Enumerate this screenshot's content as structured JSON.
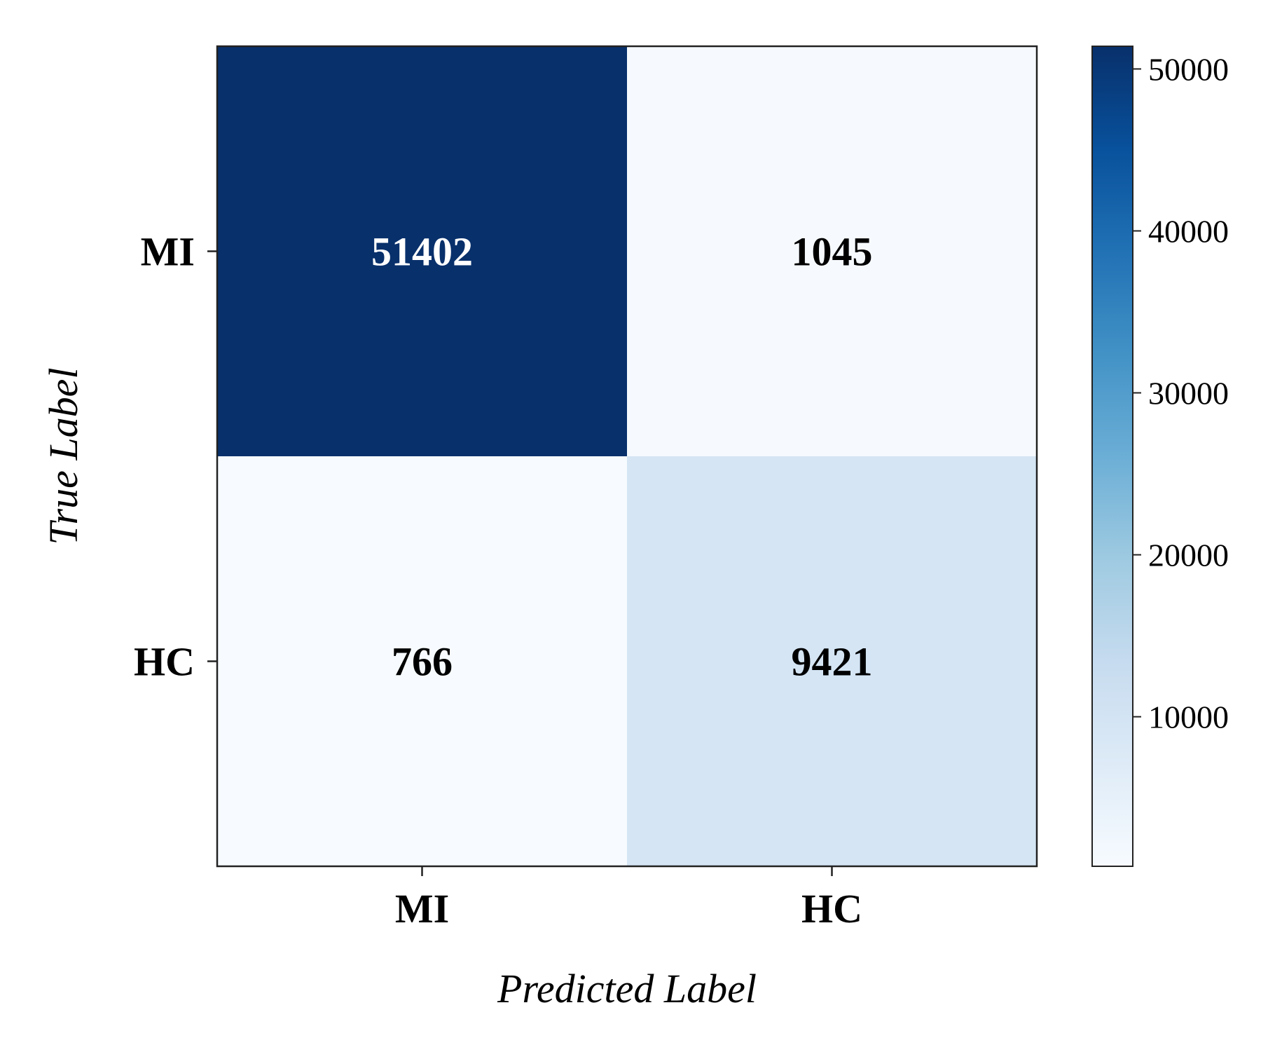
{
  "chart_data": {
    "type": "heatmap",
    "title": "",
    "xlabel": "Predicted Label",
    "ylabel": "True Label",
    "x_categories": [
      "MI",
      "HC"
    ],
    "y_categories": [
      "MI",
      "HC"
    ],
    "matrix": [
      [
        51402,
        1045
      ],
      [
        766,
        9421
      ]
    ],
    "colorbar": {
      "min": 766,
      "max": 51402,
      "ticks": [
        10000,
        20000,
        30000,
        40000,
        50000
      ],
      "colormap": "Blues"
    },
    "colors": {
      "light": "#f7fbff",
      "dark": "#08306b",
      "text_on_dark": "#ffffff",
      "text_on_light": "#000000"
    },
    "grid": false
  }
}
